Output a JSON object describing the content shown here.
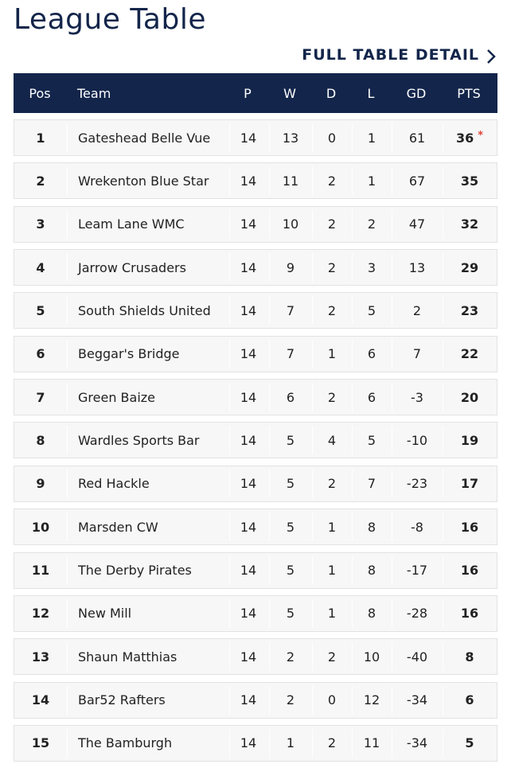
{
  "header": {
    "title": "League Table",
    "link": "FULL TABLE DETAIL"
  },
  "table": {
    "columns": [
      "Pos",
      "Team",
      "P",
      "W",
      "D",
      "L",
      "GD",
      "PTS"
    ],
    "rows": [
      {
        "cells": [
          1,
          "Gateshead Belle Vue",
          14,
          13,
          0,
          1,
          61,
          36
        ],
        "note": "*"
      },
      {
        "cells": [
          2,
          "Wrekenton Blue Star",
          14,
          11,
          2,
          1,
          67,
          35
        ]
      },
      {
        "cells": [
          3,
          "Leam Lane WMC",
          14,
          10,
          2,
          2,
          47,
          32
        ]
      },
      {
        "cells": [
          4,
          "Jarrow Crusaders",
          14,
          9,
          2,
          3,
          13,
          29
        ]
      },
      {
        "cells": [
          5,
          "South Shields United",
          14,
          7,
          2,
          5,
          2,
          23
        ]
      },
      {
        "cells": [
          6,
          "Beggar's Bridge",
          14,
          7,
          1,
          6,
          7,
          22
        ]
      },
      {
        "cells": [
          7,
          "Green Baize",
          14,
          6,
          2,
          6,
          -3,
          20
        ]
      },
      {
        "cells": [
          8,
          "Wardles Sports Bar",
          14,
          5,
          4,
          5,
          -10,
          19
        ]
      },
      {
        "cells": [
          9,
          "Red Hackle",
          14,
          5,
          2,
          7,
          -23,
          17
        ]
      },
      {
        "cells": [
          10,
          "Marsden CW",
          14,
          5,
          1,
          8,
          -8,
          16
        ]
      },
      {
        "cells": [
          11,
          "The Derby Pirates",
          14,
          5,
          1,
          8,
          -17,
          16
        ]
      },
      {
        "cells": [
          12,
          "New Mill",
          14,
          5,
          1,
          8,
          -28,
          16
        ]
      },
      {
        "cells": [
          13,
          "Shaun Matthias",
          14,
          2,
          2,
          10,
          -40,
          8
        ]
      },
      {
        "cells": [
          14,
          "Bar52 Rafters",
          14,
          2,
          0,
          12,
          -34,
          6
        ]
      },
      {
        "cells": [
          15,
          "The Bamburgh",
          14,
          1,
          2,
          11,
          -34,
          5
        ]
      }
    ]
  }
}
